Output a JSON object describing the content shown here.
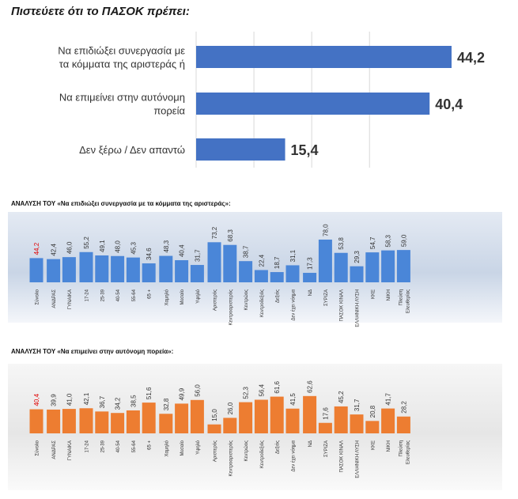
{
  "title": "Πιστεύετε ότι το ΠΑΣΟΚ πρέπει:",
  "chart_data": [
    {
      "type": "bar",
      "orientation": "horizontal",
      "title": "Πιστεύετε ότι το ΠΑΣΟΚ πρέπει:",
      "categories": [
        [
          "Να επιδιώξει συνεργασία με",
          "τα κόμματα της αριστεράς ή"
        ],
        [
          "Να επιμείνει στην αυτόνομη",
          "πορεία"
        ],
        [
          "Δεν ξέρω / Δεν απαντώ"
        ]
      ],
      "values": [
        44.2,
        40.4,
        15.4
      ],
      "value_labels": [
        "44,2",
        "40,4",
        "15,4"
      ],
      "xlim": [
        0,
        50
      ],
      "grid": true,
      "colors": {
        "bar": "#4472C4"
      }
    },
    {
      "type": "bar",
      "title": "ΑΝΑΛΥΣΗ ΤΟΥ «Να επιδιώξει συνεργασία με τα κόμματα της αριστεράς»:",
      "categories": [
        [
          "Σύνολο"
        ],
        [
          "ΑΝΔΡΑΣ"
        ],
        [
          "ΓΥΝΑΙΚΑ"
        ],
        [
          "17-24"
        ],
        [
          "25-39"
        ],
        [
          "40-54"
        ],
        [
          "55-64"
        ],
        [
          "65 +"
        ],
        [
          "Χαμηλό"
        ],
        [
          "Μεσαίο"
        ],
        [
          "Υψηλό"
        ],
        [
          "Αριστερός"
        ],
        [
          "Κεντροαριστερός"
        ],
        [
          "Κεντρώος"
        ],
        [
          "Κεντροδεξιός"
        ],
        [
          "Δεξιός"
        ],
        [
          "Δεν έχει νόημα"
        ],
        [
          "ΝΔ"
        ],
        [
          "ΣΥΡΙΖΑ"
        ],
        [
          "ΠΑΣΟΚ ΚΙΝΑΛ"
        ],
        [
          "ΕΛΛΗΝΙΚΗ ΛΥΣΗ"
        ],
        [
          "ΚΚΕ"
        ],
        [
          "ΝΙΚΗ"
        ],
        [
          "Πλεύση",
          "Ελευθερίας"
        ]
      ],
      "groups": [
        [
          0
        ],
        [
          1,
          2
        ],
        [
          3,
          4,
          5,
          6,
          7
        ],
        [
          8,
          9,
          10
        ],
        [
          11,
          12,
          13,
          14,
          15,
          16
        ],
        [
          17,
          18,
          19,
          20,
          21,
          22,
          23
        ]
      ],
      "values": [
        44.2,
        42.4,
        46.0,
        55.2,
        49.1,
        48.0,
        45.3,
        34.6,
        48.3,
        40.4,
        31.7,
        73.2,
        68.3,
        38.7,
        22.4,
        18.7,
        31.1,
        17.3,
        78.0,
        53.8,
        29.3,
        54.7,
        58.3,
        59.0
      ],
      "value_labels": [
        "44,2",
        "42,4",
        "46,0",
        "55,2",
        "49,1",
        "48,0",
        "45,3",
        "34,6",
        "48,3",
        "40,4",
        "31,7",
        "73,2",
        "68,3",
        "38,7",
        "22,4",
        "18,7",
        "31,1",
        "17,3",
        "78,0",
        "53,8",
        "29,3",
        "54,7",
        "58,3",
        "59,0"
      ],
      "ylim": [
        0,
        80
      ],
      "colors": {
        "bar": "#4A86D8",
        "highlight_label": "#E00000",
        "panel": "#D9E1EC"
      }
    },
    {
      "type": "bar",
      "title": "ΑΝΑΛΥΣΗ ΤΟΥ «Να επιμείνει στην αυτόνομη πορεία»:",
      "categories": [
        [
          "Σύνολο"
        ],
        [
          "ΑΝΔΡΑΣ"
        ],
        [
          "ΓΥΝΑΙΚΑ"
        ],
        [
          "17-24"
        ],
        [
          "25-39"
        ],
        [
          "40-54"
        ],
        [
          "55-64"
        ],
        [
          "65 +"
        ],
        [
          "Χαμηλό"
        ],
        [
          "Μεσαίο"
        ],
        [
          "Υψηλό"
        ],
        [
          "Αριστερός"
        ],
        [
          "Κεντροαριστερός"
        ],
        [
          "Κεντρώος"
        ],
        [
          "Κεντροδεξιός"
        ],
        [
          "Δεξιός"
        ],
        [
          "Δεν έχει νόημα"
        ],
        [
          "ΝΔ"
        ],
        [
          "ΣΥΡΙΖΑ"
        ],
        [
          "ΠΑΣΟΚ ΚΙΝΑΛ"
        ],
        [
          "ΕΛΛΗΝΙΚΗ ΛΥΣΗ"
        ],
        [
          "ΚΚΕ"
        ],
        [
          "ΝΙΚΗ"
        ],
        [
          "Πλεύση",
          "Ελευθερίας"
        ]
      ],
      "groups": [
        [
          0
        ],
        [
          1,
          2
        ],
        [
          3,
          4,
          5,
          6,
          7
        ],
        [
          8,
          9,
          10
        ],
        [
          11,
          12,
          13,
          14,
          15,
          16
        ],
        [
          17,
          18,
          19,
          20,
          21,
          22,
          23
        ]
      ],
      "values": [
        40.4,
        39.9,
        41.0,
        42.1,
        36.7,
        34.2,
        38.5,
        51.6,
        32.8,
        49.9,
        56.0,
        15.0,
        26.0,
        52.3,
        56.4,
        61.6,
        41.5,
        62.6,
        17.6,
        45.2,
        31.7,
        20.8,
        41.7,
        28.2
      ],
      "value_labels": [
        "40,4",
        "39,9",
        "41,0",
        "42,1",
        "36,7",
        "34,2",
        "38,5",
        "51,6",
        "32,8",
        "49,9",
        "56,0",
        "15,0",
        "26,0",
        "52,3",
        "56,4",
        "61,6",
        "41,5",
        "62,6",
        "17,6",
        "45,2",
        "31,7",
        "20,8",
        "41,7",
        "28,2"
      ],
      "ylim": [
        0,
        80
      ],
      "colors": {
        "bar": "#ED7D31",
        "highlight_label": "#E00000",
        "panel": "#F2F2F2"
      }
    }
  ]
}
